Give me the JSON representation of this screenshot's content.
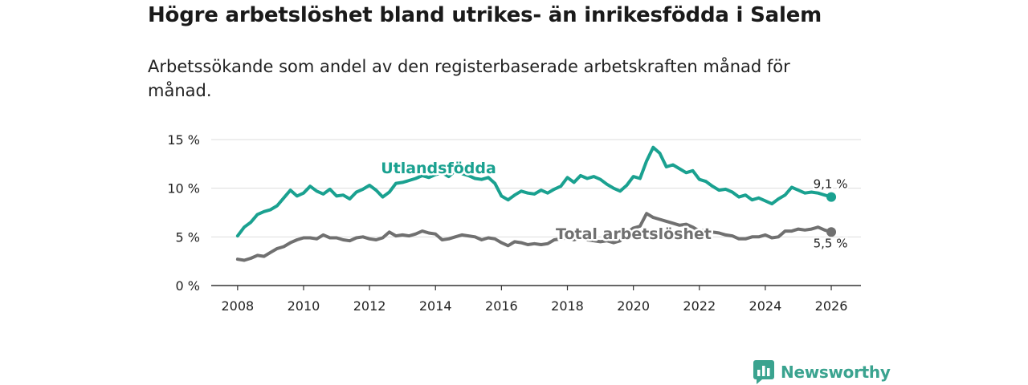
{
  "title": "Högre arbetslöshet bland utrikes- än inrikesfödda i Salem",
  "subtitle": "Arbetssökande som andel av den registerbaserade arbetskraften månad för månad.",
  "brand": {
    "name": "Newsworthy",
    "icon": "newsworthy-logo-icon"
  },
  "colors": {
    "foreign": "#1aa190",
    "total": "#707070",
    "grid": "#dddddd",
    "axis": "#333333"
  },
  "chart_data": {
    "type": "line",
    "title": "Högre arbetslöshet bland utrikes- än inrikesfödda i Salem",
    "xlabel": "",
    "ylabel": "",
    "xlim": [
      2007.2,
      2026.9
    ],
    "ylim": [
      0,
      15
    ],
    "x_ticks": [
      2008,
      2010,
      2012,
      2014,
      2016,
      2018,
      2020,
      2022,
      2024,
      2026
    ],
    "x_tick_labels": [
      "2008",
      "2010",
      "2012",
      "2014",
      "2016",
      "2018",
      "2020",
      "2022",
      "2024",
      "2026"
    ],
    "y_ticks": [
      0,
      5,
      10,
      15
    ],
    "y_tick_labels": [
      "0 %",
      "5 %",
      "10 %",
      "15 %"
    ],
    "grid": true,
    "series": [
      {
        "name": "Utlandsfödda",
        "label": "Utlandsfödda",
        "end_label": "9,1 %",
        "color": "#1aa190",
        "points": [
          [
            2008.0,
            5.1
          ],
          [
            2008.2,
            6.0
          ],
          [
            2008.4,
            6.5
          ],
          [
            2008.6,
            7.3
          ],
          [
            2008.8,
            7.6
          ],
          [
            2009.0,
            7.8
          ],
          [
            2009.2,
            8.2
          ],
          [
            2009.4,
            9.0
          ],
          [
            2009.6,
            9.8
          ],
          [
            2009.8,
            9.2
          ],
          [
            2010.0,
            9.5
          ],
          [
            2010.2,
            10.2
          ],
          [
            2010.4,
            9.7
          ],
          [
            2010.6,
            9.4
          ],
          [
            2010.8,
            9.9
          ],
          [
            2011.0,
            9.2
          ],
          [
            2011.2,
            9.3
          ],
          [
            2011.4,
            8.9
          ],
          [
            2011.6,
            9.6
          ],
          [
            2011.8,
            9.9
          ],
          [
            2012.0,
            10.3
          ],
          [
            2012.2,
            9.8
          ],
          [
            2012.4,
            9.1
          ],
          [
            2012.6,
            9.6
          ],
          [
            2012.8,
            10.5
          ],
          [
            2013.0,
            10.6
          ],
          [
            2013.2,
            10.8
          ],
          [
            2013.4,
            11.0
          ],
          [
            2013.6,
            11.3
          ],
          [
            2013.8,
            11.1
          ],
          [
            2014.0,
            11.4
          ],
          [
            2014.2,
            11.6
          ],
          [
            2014.4,
            11.2
          ],
          [
            2014.6,
            11.8
          ],
          [
            2014.8,
            11.5
          ],
          [
            2015.0,
            11.3
          ],
          [
            2015.2,
            11.0
          ],
          [
            2015.4,
            10.9
          ],
          [
            2015.6,
            11.1
          ],
          [
            2015.8,
            10.5
          ],
          [
            2016.0,
            9.2
          ],
          [
            2016.2,
            8.8
          ],
          [
            2016.4,
            9.3
          ],
          [
            2016.6,
            9.7
          ],
          [
            2016.8,
            9.5
          ],
          [
            2017.0,
            9.4
          ],
          [
            2017.2,
            9.8
          ],
          [
            2017.4,
            9.5
          ],
          [
            2017.6,
            9.9
          ],
          [
            2017.8,
            10.2
          ],
          [
            2018.0,
            11.1
          ],
          [
            2018.2,
            10.6
          ],
          [
            2018.4,
            11.3
          ],
          [
            2018.6,
            11.0
          ],
          [
            2018.8,
            11.2
          ],
          [
            2019.0,
            10.9
          ],
          [
            2019.2,
            10.4
          ],
          [
            2019.4,
            10.0
          ],
          [
            2019.6,
            9.7
          ],
          [
            2019.8,
            10.3
          ],
          [
            2020.0,
            11.2
          ],
          [
            2020.2,
            11.0
          ],
          [
            2020.4,
            12.8
          ],
          [
            2020.6,
            14.2
          ],
          [
            2020.8,
            13.6
          ],
          [
            2021.0,
            12.2
          ],
          [
            2021.2,
            12.4
          ],
          [
            2021.4,
            12.0
          ],
          [
            2021.6,
            11.6
          ],
          [
            2021.8,
            11.8
          ],
          [
            2022.0,
            10.9
          ],
          [
            2022.2,
            10.7
          ],
          [
            2022.4,
            10.2
          ],
          [
            2022.6,
            9.8
          ],
          [
            2022.8,
            9.9
          ],
          [
            2023.0,
            9.6
          ],
          [
            2023.2,
            9.1
          ],
          [
            2023.4,
            9.3
          ],
          [
            2023.6,
            8.8
          ],
          [
            2023.8,
            9.0
          ],
          [
            2024.0,
            8.7
          ],
          [
            2024.2,
            8.4
          ],
          [
            2024.4,
            8.9
          ],
          [
            2024.6,
            9.3
          ],
          [
            2024.8,
            10.1
          ],
          [
            2025.0,
            9.8
          ],
          [
            2025.2,
            9.5
          ],
          [
            2025.4,
            9.6
          ],
          [
            2025.6,
            9.5
          ],
          [
            2025.8,
            9.3
          ],
          [
            2026.0,
            9.1
          ]
        ]
      },
      {
        "name": "Total arbetslöshet",
        "label": "Total arbetslöshet",
        "end_label": "5,5 %",
        "color": "#707070",
        "points": [
          [
            2008.0,
            2.7
          ],
          [
            2008.2,
            2.6
          ],
          [
            2008.4,
            2.8
          ],
          [
            2008.6,
            3.1
          ],
          [
            2008.8,
            3.0
          ],
          [
            2009.0,
            3.4
          ],
          [
            2009.2,
            3.8
          ],
          [
            2009.4,
            4.0
          ],
          [
            2009.6,
            4.4
          ],
          [
            2009.8,
            4.7
          ],
          [
            2010.0,
            4.9
          ],
          [
            2010.2,
            4.9
          ],
          [
            2010.4,
            4.8
          ],
          [
            2010.6,
            5.2
          ],
          [
            2010.8,
            4.9
          ],
          [
            2011.0,
            4.9
          ],
          [
            2011.2,
            4.7
          ],
          [
            2011.4,
            4.6
          ],
          [
            2011.6,
            4.9
          ],
          [
            2011.8,
            5.0
          ],
          [
            2012.0,
            4.8
          ],
          [
            2012.2,
            4.7
          ],
          [
            2012.4,
            4.9
          ],
          [
            2012.6,
            5.5
          ],
          [
            2012.8,
            5.1
          ],
          [
            2013.0,
            5.2
          ],
          [
            2013.2,
            5.1
          ],
          [
            2013.4,
            5.3
          ],
          [
            2013.6,
            5.6
          ],
          [
            2013.8,
            5.4
          ],
          [
            2014.0,
            5.3
          ],
          [
            2014.2,
            4.7
          ],
          [
            2014.4,
            4.8
          ],
          [
            2014.6,
            5.0
          ],
          [
            2014.8,
            5.2
          ],
          [
            2015.0,
            5.1
          ],
          [
            2015.2,
            5.0
          ],
          [
            2015.4,
            4.7
          ],
          [
            2015.6,
            4.9
          ],
          [
            2015.8,
            4.8
          ],
          [
            2016.0,
            4.4
          ],
          [
            2016.2,
            4.1
          ],
          [
            2016.4,
            4.5
          ],
          [
            2016.6,
            4.4
          ],
          [
            2016.8,
            4.2
          ],
          [
            2017.0,
            4.3
          ],
          [
            2017.2,
            4.2
          ],
          [
            2017.4,
            4.3
          ],
          [
            2017.6,
            4.7
          ],
          [
            2017.8,
            4.8
          ],
          [
            2018.0,
            4.9
          ],
          [
            2018.2,
            4.7
          ],
          [
            2018.4,
            4.9
          ],
          [
            2018.6,
            4.7
          ],
          [
            2018.8,
            4.6
          ],
          [
            2019.0,
            4.5
          ],
          [
            2019.2,
            4.6
          ],
          [
            2019.4,
            4.4
          ],
          [
            2019.6,
            4.6
          ],
          [
            2019.8,
            5.4
          ],
          [
            2020.0,
            5.9
          ],
          [
            2020.2,
            6.1
          ],
          [
            2020.4,
            7.4
          ],
          [
            2020.6,
            7.0
          ],
          [
            2020.8,
            6.8
          ],
          [
            2021.0,
            6.6
          ],
          [
            2021.2,
            6.4
          ],
          [
            2021.4,
            6.2
          ],
          [
            2021.6,
            6.3
          ],
          [
            2021.8,
            6.0
          ],
          [
            2022.0,
            5.6
          ],
          [
            2022.2,
            5.7
          ],
          [
            2022.4,
            5.5
          ],
          [
            2022.6,
            5.4
          ],
          [
            2022.8,
            5.2
          ],
          [
            2023.0,
            5.1
          ],
          [
            2023.2,
            4.8
          ],
          [
            2023.4,
            4.8
          ],
          [
            2023.6,
            5.0
          ],
          [
            2023.8,
            5.0
          ],
          [
            2024.0,
            5.2
          ],
          [
            2024.2,
            4.9
          ],
          [
            2024.4,
            5.0
          ],
          [
            2024.6,
            5.6
          ],
          [
            2024.8,
            5.6
          ],
          [
            2025.0,
            5.8
          ],
          [
            2025.2,
            5.7
          ],
          [
            2025.4,
            5.8
          ],
          [
            2025.6,
            6.0
          ],
          [
            2025.8,
            5.7
          ],
          [
            2026.0,
            5.5
          ]
        ]
      }
    ]
  }
}
